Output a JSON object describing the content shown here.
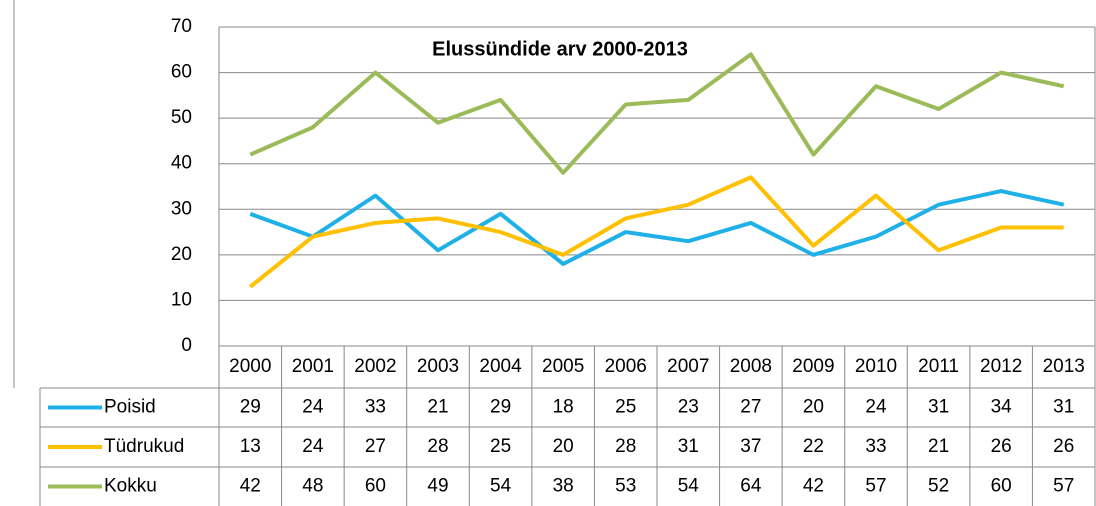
{
  "chart_data": {
    "type": "line",
    "title": "Elussündide arv 2000-2013",
    "categories": [
      "2000",
      "2001",
      "2002",
      "2003",
      "2004",
      "2005",
      "2006",
      "2007",
      "2008",
      "2009",
      "2010",
      "2011",
      "2012",
      "2013"
    ],
    "series": [
      {
        "name": "Poisid",
        "color": "#1eb0e6",
        "values": [
          29,
          24,
          33,
          21,
          29,
          18,
          25,
          23,
          27,
          20,
          24,
          31,
          34,
          31
        ]
      },
      {
        "name": "Tüdrukud",
        "color": "#ffc000",
        "values": [
          13,
          24,
          27,
          28,
          25,
          20,
          28,
          31,
          37,
          22,
          33,
          21,
          26,
          26
        ]
      },
      {
        "name": "Kokku",
        "color": "#9bbb59",
        "values": [
          42,
          48,
          60,
          49,
          54,
          38,
          53,
          54,
          64,
          42,
          57,
          52,
          60,
          57
        ]
      }
    ],
    "ylim": [
      0,
      70
    ],
    "yticks": [
      0,
      10,
      20,
      30,
      40,
      50,
      60,
      70
    ],
    "grid": true
  }
}
